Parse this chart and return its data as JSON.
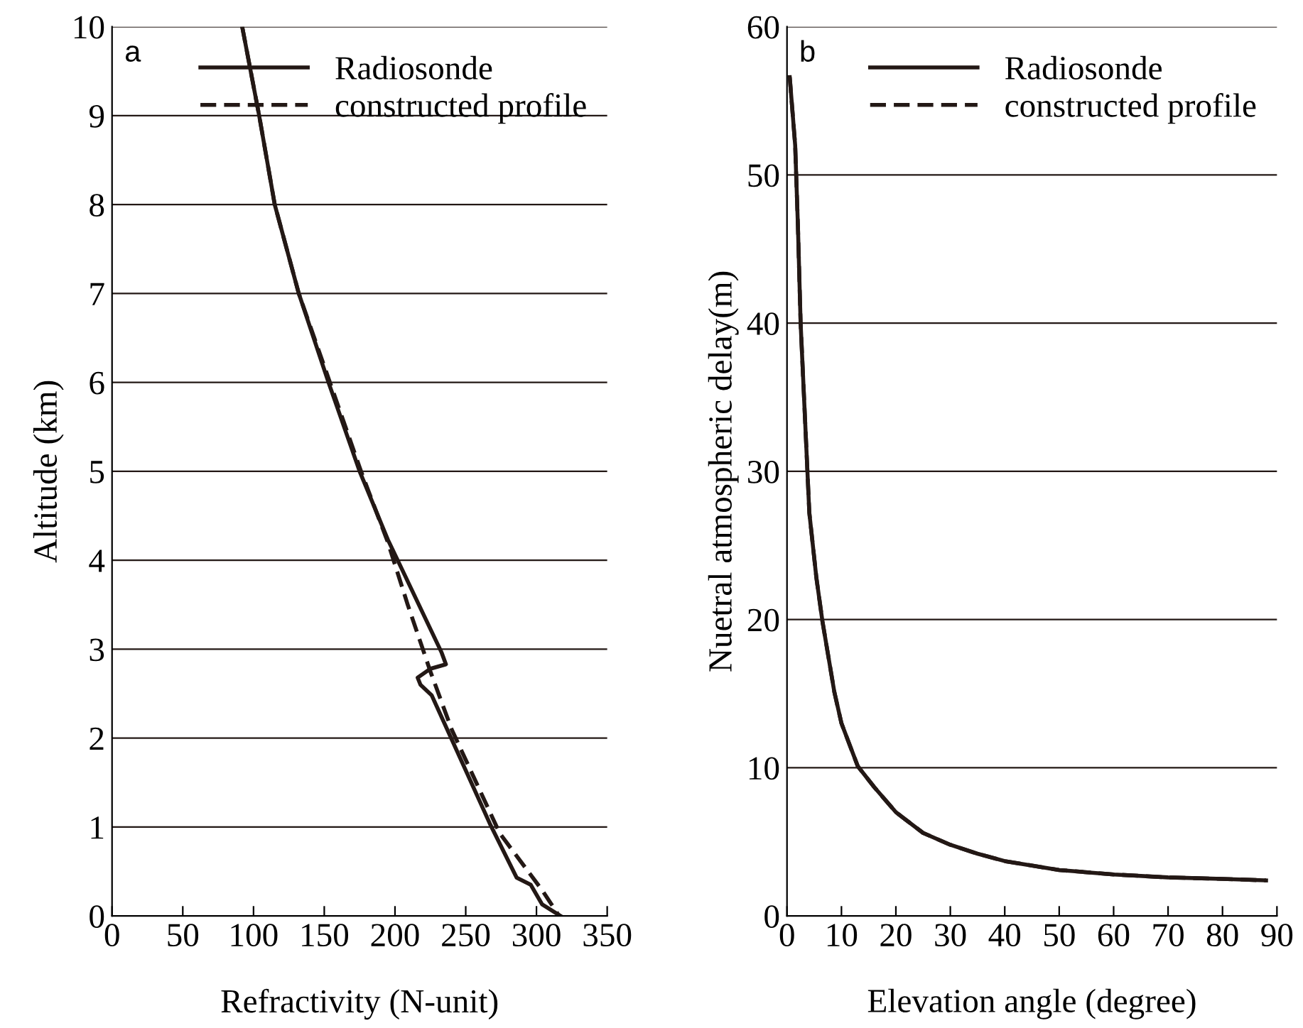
{
  "chart_data": [
    {
      "type": "line",
      "xlabel": "Refractivity (N-unit)",
      "ylabel": "Altitude (km)",
      "annotations": [
        "a"
      ],
      "xlim": [
        0,
        350
      ],
      "xticks": [
        0,
        50,
        100,
        150,
        200,
        250,
        300,
        350
      ],
      "ylim": [
        0,
        10
      ],
      "yticks": [
        0,
        1,
        2,
        3,
        4,
        5,
        6,
        7,
        8,
        9,
        10
      ],
      "grid": "y",
      "legend": "top right",
      "series": [
        {
          "name": "Radiosonde",
          "color": "#231815",
          "line_style": "solid",
          "x": [
            92,
            104,
            115,
            132,
            153,
            175,
            195,
            201,
            233,
            236,
            225,
            216,
            218,
            226,
            267,
            286,
            296,
            304,
            317
          ],
          "values": [
            10,
            9,
            8,
            7,
            6,
            5,
            4.23,
            4.03,
            2.96,
            2.83,
            2.78,
            2.68,
            2.6,
            2.48,
            1.04,
            0.43,
            0.35,
            0.13,
            0
          ]
        },
        {
          "name": "constructed profile",
          "color": "#231815",
          "line_style": "dashed",
          "x": [
            92,
            104,
            115,
            132,
            154,
            176,
            195,
            209,
            225,
            240,
            274,
            304,
            316
          ],
          "values": [
            10,
            9,
            8,
            7,
            6,
            5,
            4.2,
            3.5,
            2.75,
            2.1,
            0.93,
            0.29,
            0
          ]
        }
      ]
    },
    {
      "type": "line",
      "xlabel": "Elevation angle (degree)",
      "ylabel": "Nuetral atmospheric delay(m)",
      "annotations": [
        "b"
      ],
      "xlim": [
        0,
        90
      ],
      "xticks": [
        0,
        10,
        20,
        30,
        40,
        50,
        60,
        70,
        80,
        90
      ],
      "ylim": [
        0,
        60
      ],
      "yticks": [
        0,
        10,
        20,
        30,
        40,
        50,
        60
      ],
      "grid": "y",
      "legend": "top right",
      "series": [
        {
          "name": "Radiosonde",
          "color": "#231815",
          "line_style": "solid",
          "x": [
            0.5,
            1.5,
            2,
            2.5,
            3.3,
            4.1,
            5.4,
            6.5,
            8.7,
            10,
            13,
            16,
            20,
            25,
            30,
            35,
            40,
            50,
            60,
            70,
            80,
            88
          ],
          "values": [
            56.6,
            52,
            46.6,
            40,
            33.6,
            27.2,
            22.8,
            19.9,
            15.1,
            13,
            10.1,
            8.7,
            7.0,
            5.6,
            4.8,
            4.2,
            3.7,
            3.1,
            2.8,
            2.6,
            2.5,
            2.4
          ]
        },
        {
          "name": "constructed profile",
          "color": "#231815",
          "line_style": "dashed",
          "x": [
            0.5,
            1.5,
            2,
            2.5,
            3.3,
            4.1,
            5.4,
            6.5,
            8.7,
            10,
            13,
            16,
            20,
            25,
            30,
            35,
            40,
            50,
            60,
            70,
            80,
            88
          ],
          "values": [
            56.6,
            52,
            46.6,
            40,
            33.6,
            27.2,
            22.8,
            19.9,
            15.1,
            13,
            10.1,
            8.7,
            7.0,
            5.6,
            4.8,
            4.2,
            3.7,
            3.1,
            2.8,
            2.6,
            2.5,
            2.4
          ]
        }
      ]
    }
  ]
}
